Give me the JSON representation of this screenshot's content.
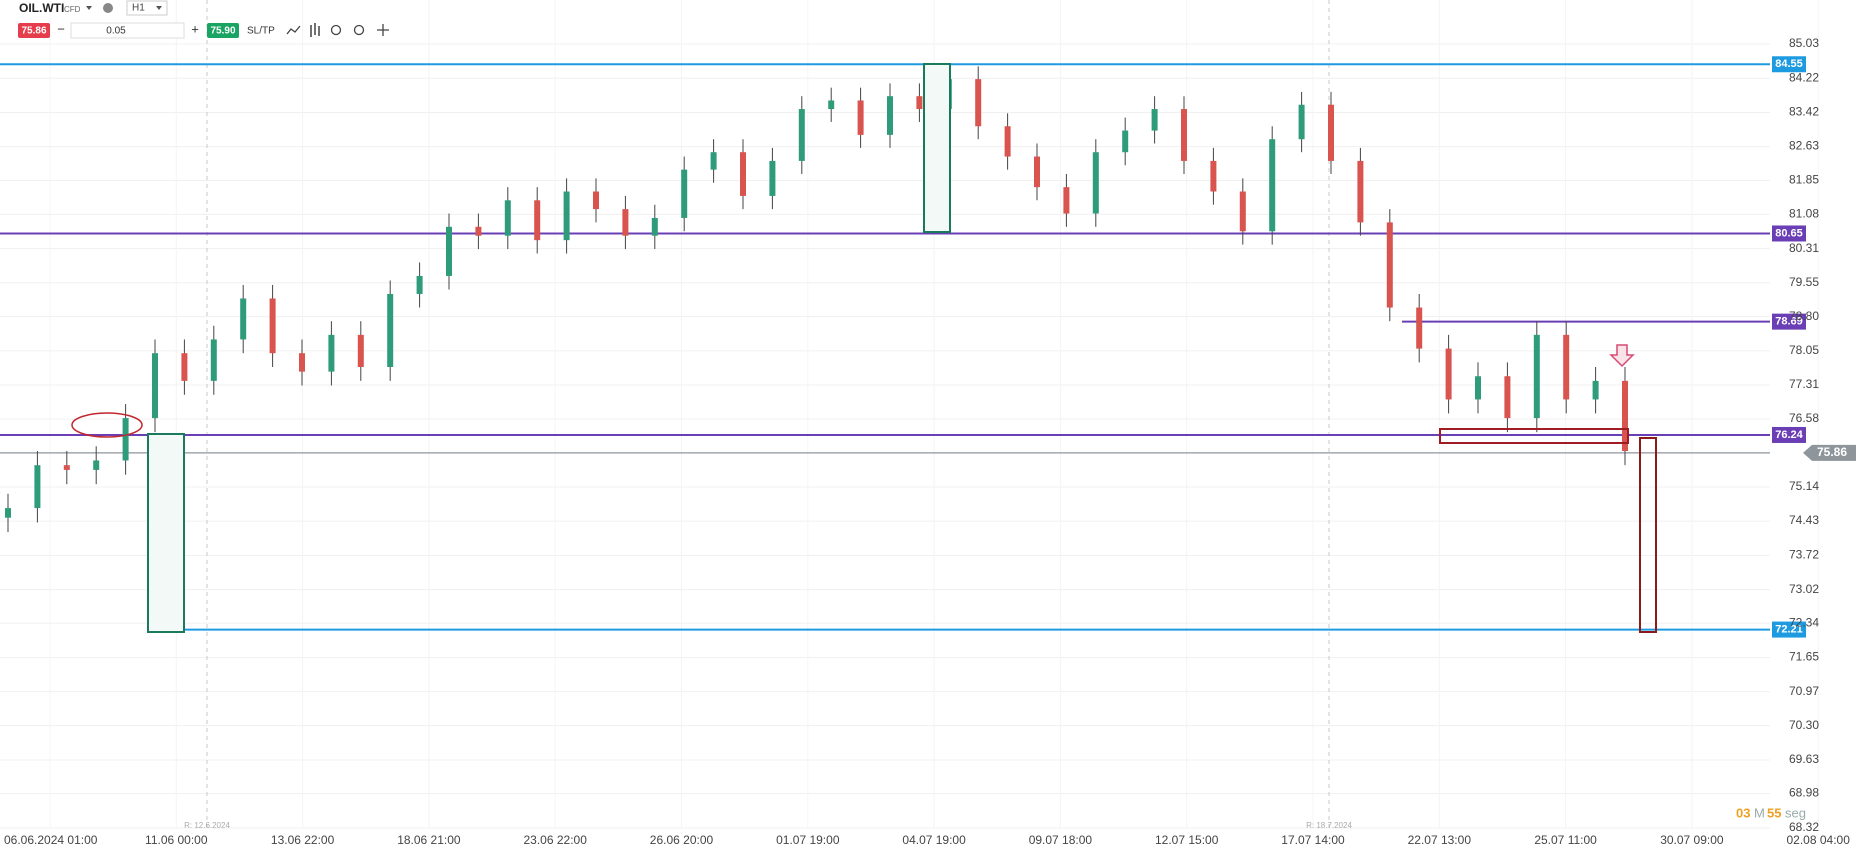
{
  "toolbar": {
    "symbol": "OIL.WTI",
    "kind": "CFD",
    "interval": "H1",
    "sell": "75.86",
    "minus": "−",
    "volume": "0.05",
    "plus": "+",
    "buy": "75.90",
    "sltp": "SL/TP"
  },
  "chart_data": {
    "type": "candlestick",
    "log_scale": true,
    "ylim": [
      68.32,
      86.08
    ],
    "yticks": [
      85.03,
      84.22,
      83.42,
      82.63,
      81.85,
      81.08,
      80.31,
      79.55,
      {
        "value": 78.8,
        "label": "78.80"
      },
      78.05,
      77.31,
      76.58,
      75.14,
      74.43,
      73.72,
      73.02,
      72.34,
      71.65,
      70.97,
      {
        "value": 70.3,
        "label": "70.30"
      },
      69.63,
      68.98,
      68.32
    ],
    "x_labels": [
      "06.06.2024 01:00",
      "11.06 00:00",
      "13.06 22:00",
      "18.06 21:00",
      "23.06 22:00",
      "26.06 20:00",
      "01.07 19:00",
      "04.07 19:00",
      "09.07 18:00",
      "12.07 15:00",
      "17.07 14:00",
      "22.07 13:00",
      "25.07 11:00",
      "30.07 09:00",
      "02.08 04:00"
    ],
    "rollover_labels": [
      "R: 12.6.2024",
      "R: 18.7.2024"
    ],
    "up_color": "#2e9c7a",
    "down_color": "#d9534f",
    "wick_color": "#444444",
    "candles": {
      "open": [
        74.5,
        74.7,
        75.6,
        75.5,
        75.7,
        76.6,
        78.0,
        77.4,
        78.3,
        79.2,
        78.0,
        77.6,
        78.4,
        77.7,
        79.3,
        79.7,
        80.8,
        80.6,
        81.4,
        80.5,
        81.6,
        81.2,
        80.6,
        81.0,
        82.1,
        82.5,
        81.5,
        82.3,
        83.5,
        83.7,
        82.9,
        83.8,
        83.5,
        84.2,
        83.1,
        82.4,
        81.7,
        81.1,
        82.5,
        83.0,
        83.5,
        82.3,
        81.6,
        80.7,
        82.8,
        83.6,
        82.3,
        80.9,
        79.0,
        78.1,
        77.0,
        77.5,
        76.6,
        78.4,
        77.0,
        77.4
      ],
      "high": [
        75.0,
        75.9,
        75.9,
        76.0,
        76.9,
        78.3,
        78.3,
        78.6,
        79.5,
        79.5,
        78.3,
        78.7,
        78.7,
        79.6,
        80.0,
        81.1,
        81.1,
        81.7,
        81.7,
        81.9,
        81.9,
        81.5,
        81.3,
        82.4,
        82.8,
        82.8,
        82.6,
        83.8,
        84.0,
        84.0,
        84.1,
        84.1,
        84.5,
        84.5,
        83.4,
        82.7,
        82.0,
        82.8,
        83.3,
        83.8,
        83.8,
        82.6,
        81.9,
        83.1,
        83.9,
        83.9,
        82.6,
        81.2,
        79.3,
        78.4,
        77.8,
        77.8,
        78.7,
        78.7,
        77.7,
        77.7
      ],
      "low": [
        74.2,
        74.4,
        75.2,
        75.2,
        75.4,
        76.3,
        77.1,
        77.1,
        78.0,
        77.7,
        77.3,
        77.3,
        77.4,
        77.4,
        79.0,
        79.4,
        80.3,
        80.3,
        80.2,
        80.2,
        80.9,
        80.3,
        80.3,
        80.7,
        81.8,
        81.2,
        81.2,
        82.0,
        83.2,
        82.6,
        82.6,
        83.2,
        83.2,
        82.8,
        82.1,
        81.4,
        80.8,
        80.8,
        82.2,
        82.7,
        82.0,
        81.3,
        80.4,
        80.4,
        82.5,
        82.0,
        80.6,
        78.7,
        77.8,
        76.7,
        76.7,
        76.3,
        76.3,
        76.7,
        76.7,
        75.6
      ],
      "close": [
        74.7,
        75.6,
        75.5,
        75.7,
        76.6,
        78.0,
        77.4,
        78.3,
        79.2,
        78.0,
        77.6,
        78.4,
        77.7,
        79.3,
        79.7,
        80.8,
        80.6,
        81.4,
        80.5,
        81.6,
        81.2,
        80.6,
        81.0,
        82.1,
        82.5,
        81.5,
        82.3,
        83.5,
        83.7,
        82.9,
        83.8,
        83.5,
        84.2,
        83.1,
        82.4,
        81.7,
        81.1,
        82.5,
        83.0,
        83.5,
        82.3,
        81.6,
        80.7,
        82.8,
        83.6,
        82.3,
        80.9,
        79.0,
        78.1,
        77.0,
        77.5,
        76.6,
        78.4,
        77.0,
        77.4,
        75.9
      ]
    },
    "levels": [
      {
        "value": 84.55,
        "color": "#1e9be0"
      },
      {
        "value": 80.65,
        "color": "#6a3fb5"
      },
      {
        "value": 78.69,
        "color": "#6a3fb5"
      },
      {
        "value": 76.24,
        "color": "#6a3fb5"
      },
      {
        "value": 72.21,
        "color": "#1e9be0"
      }
    ],
    "current_price": 75.86,
    "current_color": "#8e969c",
    "timer": {
      "minutes": "03",
      "m": "M",
      "seconds": "55",
      "s": "seg"
    }
  }
}
